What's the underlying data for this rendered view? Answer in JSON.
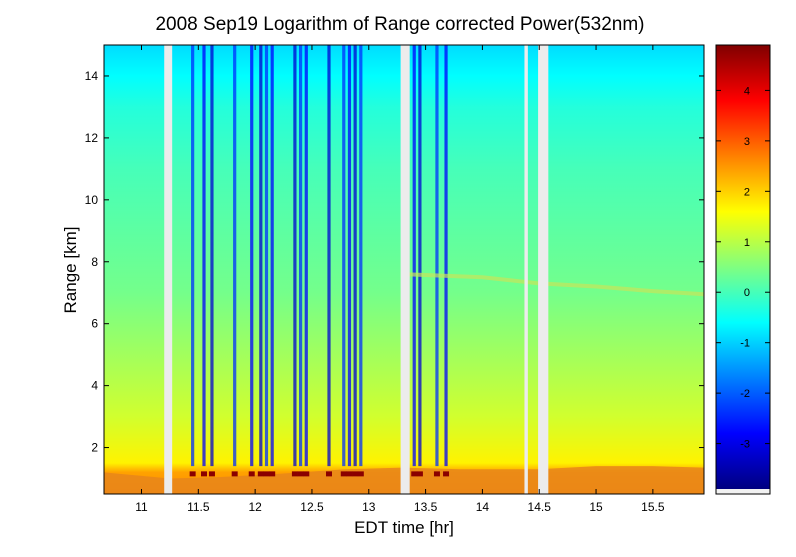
{
  "chart_data": {
    "type": "heatmap",
    "title": "2008 Sep19  Logarithm of Range corrected Power(532nm)",
    "xlabel": "EDT time [hr]",
    "ylabel": "Range [km]",
    "xlim": [
      10.67,
      15.95
    ],
    "ylim": [
      0.5,
      15.0
    ],
    "x_ticks": [
      11,
      11.5,
      12,
      12.5,
      13,
      13.5,
      14,
      14.5,
      15,
      15.5
    ],
    "x_tick_labels": [
      "11",
      "11.5",
      "12",
      "12.5",
      "13",
      "13.5",
      "14",
      "14.5",
      "15",
      "15.5"
    ],
    "y_ticks": [
      2,
      4,
      6,
      8,
      10,
      12,
      14
    ],
    "y_tick_labels": [
      "2",
      "4",
      "6",
      "8",
      "10",
      "12",
      "14"
    ],
    "colorbar": {
      "range": [
        -3.9,
        4.9
      ],
      "ticks": [
        -3,
        -2,
        -1,
        0,
        1,
        2,
        3,
        4
      ],
      "tick_labels": [
        "-3",
        "-2",
        "-1",
        "0",
        "1",
        "2",
        "3",
        "4"
      ],
      "colormap": "jet"
    },
    "value_profile": {
      "range_km": [
        0.5,
        1.2,
        1.5,
        3.0,
        5.0,
        7.0,
        9.0,
        11.0,
        13.0,
        14.0,
        15.0
      ],
      "log_power": [
        2.6,
        2.4,
        1.7,
        1.2,
        0.8,
        0.4,
        0.2,
        0.0,
        -0.3,
        -0.6,
        -0.9
      ]
    },
    "boundary_layer_top": {
      "time_hr": [
        10.67,
        11.25,
        11.7,
        12.2,
        12.8,
        13.3,
        13.8,
        14.5,
        15.0,
        15.5,
        15.95
      ],
      "range_km": [
        1.2,
        1.0,
        1.05,
        1.15,
        1.3,
        1.35,
        1.3,
        1.3,
        1.4,
        1.4,
        1.35
      ]
    },
    "thin_layer": {
      "time_hr": [
        13.3,
        14.0,
        14.5,
        15.0,
        15.5,
        15.95
      ],
      "range_km": [
        7.6,
        7.5,
        7.3,
        7.2,
        7.05,
        6.95
      ]
    },
    "cloud_streaks_time_hr": [
      11.45,
      11.55,
      11.62,
      11.82,
      11.97,
      12.05,
      12.1,
      12.15,
      12.35,
      12.4,
      12.45,
      12.65,
      12.78,
      12.83,
      12.88,
      12.93,
      13.4,
      13.45,
      13.6,
      13.68
    ],
    "data_gaps_time_hr": [
      [
        11.2,
        11.27
      ],
      [
        13.28,
        13.36
      ],
      [
        14.37,
        14.4
      ],
      [
        14.49,
        14.58
      ]
    ]
  }
}
